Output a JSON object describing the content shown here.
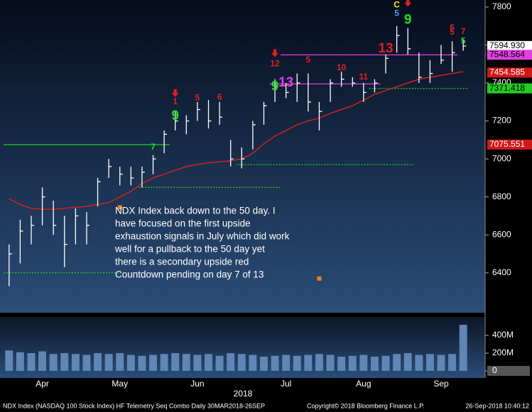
{
  "chart_data": {
    "type": "ohlc",
    "categories": [
      null,
      null,
      null,
      "Apr",
      null,
      null,
      null,
      null,
      null,
      null,
      "May",
      null,
      null,
      null,
      null,
      null,
      null,
      "Jun",
      null,
      null,
      null,
      null,
      null,
      null,
      null,
      "Jul",
      null,
      null,
      null,
      null,
      null,
      null,
      "Aug",
      null,
      null,
      null,
      null,
      null,
      null,
      "Sep",
      null,
      null
    ],
    "high": [
      6550,
      6680,
      6700,
      6850,
      6780,
      6700,
      6740,
      6720,
      6900,
      7000,
      6960,
      6960,
      6960,
      7020,
      7150,
      7250,
      7230,
      7300,
      7310,
      7300,
      7100,
      7060,
      7200,
      7300,
      7420,
      7400,
      7450,
      7450,
      7300,
      7420,
      7460,
      7430,
      7400,
      7420,
      7550,
      7700,
      7690,
      7560,
      7520,
      7600,
      7620,
      7630
    ],
    "low": [
      6330,
      6450,
      6550,
      6650,
      6600,
      6430,
      6550,
      6550,
      6750,
      6900,
      6860,
      6860,
      6850,
      6920,
      7030,
      7150,
      7130,
      7200,
      7160,
      7180,
      6960,
      6950,
      7050,
      7180,
      7300,
      7320,
      7300,
      7250,
      7150,
      7300,
      7380,
      7380,
      7300,
      7350,
      7450,
      7560,
      7550,
      7400,
      7400,
      7500,
      7460,
      7570
    ],
    "close": [
      6500,
      6620,
      6650,
      6800,
      6650,
      6550,
      6700,
      6650,
      6880,
      6960,
      6920,
      6900,
      6930,
      7000,
      7130,
      7200,
      7200,
      7260,
      7200,
      7220,
      7000,
      7000,
      7180,
      7280,
      7380,
      7350,
      7400,
      7300,
      7250,
      7400,
      7420,
      7400,
      7350,
      7400,
      7530,
      7650,
      7580,
      7430,
      7450,
      7520,
      7560,
      7595
    ],
    "ma": [
      6790,
      6760,
      6740,
      6735,
      6735,
      6740,
      6745,
      6750,
      6760,
      6770,
      6800,
      6830,
      6870,
      6900,
      6920,
      6940,
      6960,
      6970,
      6980,
      6985,
      6990,
      7000,
      7030,
      7080,
      7120,
      7150,
      7180,
      7200,
      7215,
      7240,
      7260,
      7280,
      7310,
      7340,
      7360,
      7380,
      7400,
      7420,
      7430,
      7440,
      7450,
      7460
    ],
    "ma_color": "#d02020",
    "bar_color": "#ffffff",
    "ylim": [
      6190,
      7837
    ],
    "yticks": [
      6400,
      6600,
      6800,
      7000,
      7200,
      7400,
      7600,
      7800
    ],
    "volume": [
      230,
      210,
      200,
      220,
      190,
      200,
      190,
      180,
      200,
      190,
      200,
      180,
      170,
      180,
      190,
      200,
      190,
      180,
      190,
      170,
      200,
      190,
      180,
      160,
      170,
      180,
      170,
      180,
      190,
      180,
      160,
      170,
      180,
      160,
      170,
      190,
      200,
      180,
      190,
      180,
      190,
      520
    ],
    "volume_color": "#5f86b4",
    "volume_ylim": [
      -80,
      608
    ],
    "volume_yticks": [
      {
        "value": 0,
        "label": "0"
      },
      {
        "value": 200,
        "label": "200M"
      },
      {
        "value": 400,
        "label": "400M"
      }
    ],
    "price_tags": [
      {
        "value": 7594.93,
        "label": "7594.930",
        "color": "#ffffff",
        "text_color": "#000000"
      },
      {
        "value": 7548.564,
        "label": "7548.564",
        "color": "#e040e0",
        "text_color": "#000000"
      },
      {
        "value": 7454.585,
        "label": "7454.585",
        "color": "#d01818",
        "text_color": "#ffffff"
      },
      {
        "value": 7371.418,
        "label": "7371.418",
        "color": "#22cc22",
        "text_color": "#000000"
      },
      {
        "value": 7075.551,
        "label": "7075.551",
        "color": "#d01818",
        "text_color": "#ffffff"
      }
    ],
    "levels": [
      {
        "value": 7075,
        "from": 0,
        "to": 14,
        "color": "#22cc22",
        "style": "solid"
      },
      {
        "value": 6850,
        "from": 12,
        "to": 24,
        "color": "#22cc22",
        "style": "dotted"
      },
      {
        "value": 6400,
        "from": 0,
        "to": 10,
        "color": "#22cc22",
        "style": "dotted"
      },
      {
        "value": 6970,
        "from": 21,
        "to": 36,
        "color": "#22cc22",
        "style": "dotted"
      },
      {
        "value": 7371,
        "from": 33,
        "to": 41,
        "color": "#22cc22",
        "style": "dotted"
      },
      {
        "value": 7548,
        "from": 25,
        "to": 40,
        "color": "#e040e0",
        "style": "solid"
      },
      {
        "value": 7395,
        "from": 24,
        "to": 33,
        "color": "#e040e0",
        "style": "solid"
      }
    ],
    "annotations": [
      {
        "text": "9",
        "bar": 15,
        "price": 7225,
        "color": "#22dd22"
      },
      {
        "text": "1",
        "bar": 15,
        "price": 7300,
        "color": "#e02020"
      },
      {
        "text": "5",
        "bar": 17,
        "price": 7320,
        "color": "#e02020"
      },
      {
        "text": "6",
        "bar": 19,
        "price": 7325,
        "color": "#e02020"
      },
      {
        "text": "7",
        "bar": 13,
        "price": 7060,
        "color": "#22dd22"
      },
      {
        "text": "9",
        "bar": 24,
        "price": 7380,
        "color": "#22dd22"
      },
      {
        "text": "12",
        "bar": 24,
        "price": 7500,
        "color": "#e02020"
      },
      {
        "text": "13",
        "bar": 25,
        "price": 7400,
        "color": "#e040e0"
      },
      {
        "text": "5",
        "bar": 27,
        "price": 7520,
        "color": "#e02020"
      },
      {
        "text": "10",
        "bar": 30,
        "price": 7480,
        "color": "#e02020"
      },
      {
        "text": "11",
        "bar": 32,
        "price": 7430,
        "color": "#e02020"
      },
      {
        "text": "13",
        "bar": 34,
        "price": 7580,
        "color": "#e02020"
      },
      {
        "text": "C",
        "bar": 35,
        "price": 7810,
        "color": "#ffee00"
      },
      {
        "text": "5",
        "bar": 35,
        "price": 7765,
        "color": "#4aa0ff"
      },
      {
        "text": "9",
        "bar": 36,
        "price": 7730,
        "color": "#22dd22"
      },
      {
        "text": "5",
        "bar": 40,
        "price": 7665,
        "color": "#e02020"
      },
      {
        "text": "6",
        "bar": 40,
        "price": 7690,
        "color": "#e02020"
      },
      {
        "text": "7",
        "bar": 41,
        "price": 7670,
        "color": "#e02020"
      },
      {
        "text": "5",
        "bar": 41,
        "price": 7620,
        "color": "#22dd22"
      }
    ],
    "arrows": [
      {
        "bar": 15,
        "price": 7345
      },
      {
        "bar": 24,
        "price": 7555
      },
      {
        "bar": 36,
        "price": 7820
      }
    ],
    "markers": [
      {
        "bar": 10,
        "price": 6745,
        "color": "#f08020"
      },
      {
        "bar": 28,
        "price": 6370,
        "color": "#f08020"
      }
    ],
    "note": [
      "NDX Index back down to the 50 day. I",
      "have focused on the first upside",
      "exhaustion signals in July which did work",
      "well for a pullback to the 50 day yet",
      "there is a secondary upside red",
      "Countdown pending on day 7 of 13"
    ],
    "year": "2018",
    "footer_left": "NDX Index (NASDAQ 100 Stock Index) HF Telemetry Seq Combo  Daily 30MAR2018-26SEP",
    "footer_mid": "Copyright© 2018 Bloomberg Finance L.P.",
    "footer_right": "26-Sep-2018 10:40:12"
  }
}
